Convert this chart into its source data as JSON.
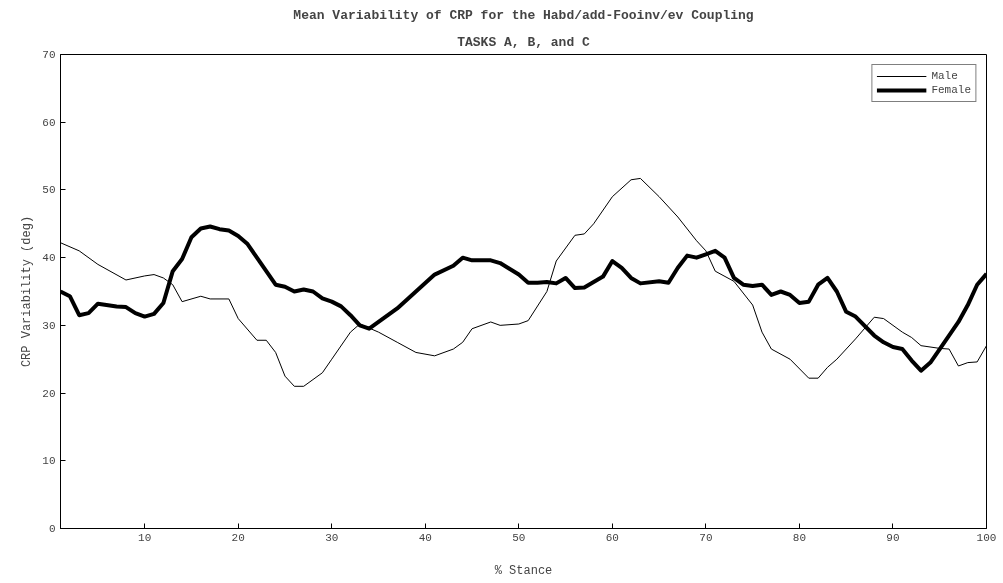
{
  "chart_data": {
    "type": "line",
    "title": "Mean Variability of CRP for the Habd/add-Fooinv/ev Coupling",
    "subtitle": "TASKS A, B, and C",
    "xlabel": "% Stance",
    "ylabel": "CRP Variability (deg)",
    "xlim": [
      1,
      100
    ],
    "ylim": [
      0,
      70
    ],
    "xticks": [
      10,
      20,
      30,
      40,
      50,
      60,
      70,
      80,
      90,
      100
    ],
    "yticks": [
      0,
      10,
      20,
      30,
      40,
      50,
      60,
      70
    ],
    "grid": false,
    "legend": "top right",
    "series": [
      {
        "name": "Male",
        "color": "#000000",
        "x": [
          1,
          3,
          5,
          8,
          10,
          11,
          12,
          13,
          14,
          16,
          17,
          19,
          20,
          22,
          23,
          24,
          25,
          26,
          27,
          29,
          30,
          32,
          33,
          35,
          37,
          39,
          41,
          43,
          44,
          45,
          47,
          48,
          50,
          51,
          53,
          54,
          56,
          57,
          58,
          60,
          62,
          63,
          65,
          67,
          69,
          70,
          71,
          73,
          75,
          76,
          77,
          79,
          81,
          82,
          83,
          84,
          86,
          88,
          89,
          91,
          92,
          93,
          95,
          96,
          97,
          98,
          99,
          100
        ],
        "values": [
          42.2,
          41,
          39,
          36.7,
          37.3,
          37.5,
          37,
          36,
          33.5,
          34.3,
          33.9,
          33.9,
          31,
          27.8,
          27.8,
          26,
          22.5,
          21,
          21,
          23,
          25,
          29,
          30.2,
          29,
          27.5,
          26,
          25.5,
          26.5,
          27.5,
          29.5,
          30.5,
          30,
          30.2,
          30.7,
          35,
          39.5,
          43.3,
          43.5,
          45,
          49,
          51.5,
          51.7,
          49,
          46,
          42.5,
          41,
          38,
          36.5,
          33,
          29,
          26.5,
          25,
          22.2,
          22.2,
          23.8,
          25,
          28,
          31.2,
          31,
          29,
          28.2,
          27,
          26.6,
          26.5,
          24,
          24.5,
          24.6,
          27
        ]
      },
      {
        "name": "Female",
        "color": "#000000",
        "x": [
          1,
          2,
          3,
          4,
          5,
          7,
          8,
          9,
          10,
          11,
          12,
          13,
          14,
          15,
          16,
          17,
          18,
          19,
          20,
          21,
          22,
          23,
          24,
          25,
          26,
          27,
          28,
          29,
          30,
          31,
          32,
          33,
          34,
          35,
          37,
          39,
          41,
          43,
          44,
          45,
          47,
          48,
          50,
          51,
          52,
          53,
          54,
          55,
          56,
          57,
          59,
          60,
          61,
          62,
          63,
          65,
          66,
          67,
          68,
          69,
          70,
          71,
          72,
          73,
          74,
          75,
          76,
          77,
          78,
          79,
          80,
          81,
          82,
          83,
          84,
          85,
          86,
          88,
          89,
          90,
          91,
          92,
          93,
          94,
          95,
          97,
          98,
          99,
          100
        ],
        "values": [
          35,
          34.3,
          31.5,
          31.8,
          33.2,
          32.8,
          32.7,
          31.8,
          31.3,
          31.7,
          33.3,
          38,
          39.8,
          43,
          44.3,
          44.6,
          44.2,
          44,
          43.2,
          42,
          40,
          38,
          36,
          35.7,
          35,
          35.3,
          35,
          34,
          33.5,
          32.8,
          31.5,
          30,
          29.5,
          30.5,
          32.5,
          35,
          37.5,
          38.8,
          40,
          39.6,
          39.6,
          39.2,
          37.5,
          36.3,
          36.3,
          36.4,
          36.2,
          37,
          35.5,
          35.6,
          37.2,
          39.5,
          38.5,
          37,
          36.2,
          36.5,
          36.3,
          38.5,
          40.3,
          40,
          40.5,
          41,
          40,
          37,
          36,
          35.8,
          36,
          34.5,
          35,
          34.5,
          33.3,
          33.5,
          36,
          37,
          35,
          32,
          31.3,
          28.5,
          27.5,
          26.8,
          26.5,
          24.8,
          23.3,
          24.5,
          26.5,
          30.5,
          33,
          36,
          37.6
        ]
      }
    ]
  }
}
